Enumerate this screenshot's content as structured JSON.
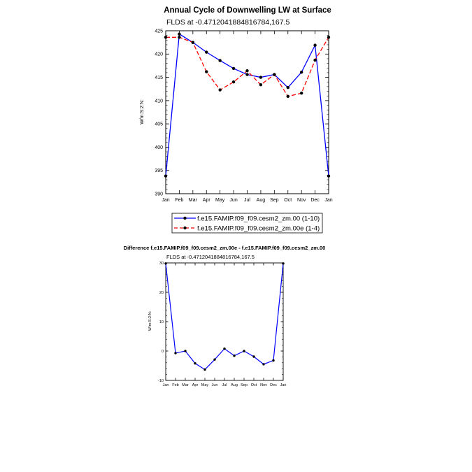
{
  "chart_data": [
    {
      "type": "line",
      "title": "Annual Cycle of Downwelling LW at Surface",
      "subtitle": "FLDS at -0.4712041884816784,167.5",
      "ylabel": "W/m:S:2:N:",
      "xlabel": "",
      "categories": [
        "Jan",
        "Feb",
        "Mar",
        "Apr",
        "May",
        "Jun",
        "Jul",
        "Aug",
        "Sep",
        "Oct",
        "Nov",
        "Dec",
        "Jan"
      ],
      "ylim": [
        390,
        425
      ],
      "yticks": [
        390,
        395,
        400,
        405,
        410,
        415,
        420,
        425
      ],
      "grid": false,
      "legend_position": "bottom",
      "series": [
        {
          "name": "f.e15.FAMIP.f09_f09.cesm2_zm.00 (1-10)",
          "color": "#0000ff",
          "dash": "solid",
          "values": [
            393.8,
            424.3,
            422.5,
            420.4,
            418.6,
            416.9,
            415.6,
            415.0,
            415.6,
            412.8,
            416.1,
            421.9,
            393.8
          ]
        },
        {
          "name": "f.e15.FAMIP.f09_f09.cesm2_zm.00e (1-4)",
          "color": "#ff0000",
          "dash": "dashed",
          "values": [
            423.6,
            423.6,
            422.5,
            416.2,
            412.3,
            414.0,
            416.4,
            413.4,
            415.6,
            410.9,
            411.6,
            418.7,
            423.6
          ]
        }
      ]
    },
    {
      "type": "line",
      "title": "Difference f.e15.FAMIP.f09_f09.cesm2_zm.00e - f.e15.FAMIP.f09_f09.cesm2_zm.00",
      "subtitle": "FLDS at -0.4712041884816784,167.5",
      "ylabel": "W/m:S:2:N:",
      "xlabel": "",
      "categories": [
        "Jan",
        "Feb",
        "Mar",
        "Apr",
        "May",
        "Jun",
        "Jul",
        "Aug",
        "Sep",
        "Oct",
        "Nov",
        "Dec",
        "Jan"
      ],
      "ylim": [
        -10,
        30
      ],
      "yticks": [
        -10,
        0,
        10,
        20,
        30
      ],
      "grid": false,
      "series": [
        {
          "color": "#0000ff",
          "dash": "solid",
          "values": [
            29.8,
            -0.7,
            0.0,
            -4.2,
            -6.3,
            -2.9,
            0.8,
            -1.6,
            0.0,
            -1.9,
            -4.5,
            -3.2,
            29.8
          ]
        }
      ]
    }
  ]
}
